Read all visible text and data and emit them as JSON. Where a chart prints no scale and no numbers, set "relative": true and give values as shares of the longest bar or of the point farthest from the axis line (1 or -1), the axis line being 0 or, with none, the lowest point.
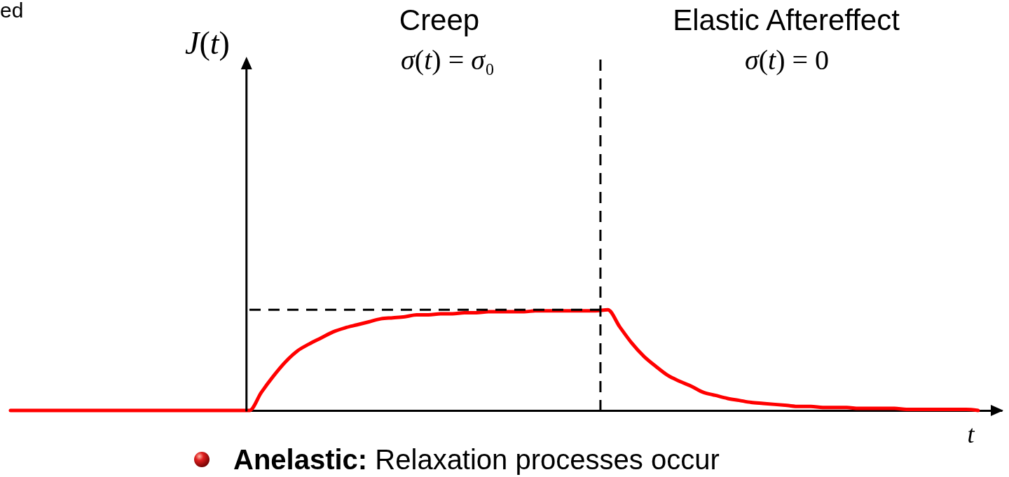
{
  "chart_data": {
    "type": "line",
    "relative": true,
    "xlabel": "t",
    "categories": [
      null,
      null,
      null,
      null,
      null,
      null,
      null,
      null,
      null,
      null,
      null,
      null,
      null,
      null,
      null,
      null,
      null,
      null,
      null,
      null,
      null,
      null,
      null,
      null,
      null,
      null,
      null,
      null,
      null,
      null,
      null,
      null,
      null,
      null,
      null,
      null,
      null,
      null,
      null,
      null,
      null,
      null,
      null,
      null,
      null,
      null,
      null,
      null,
      null,
      null,
      null,
      null,
      null,
      null,
      null,
      null,
      null,
      null,
      null,
      null,
      null,
      null,
      null,
      null,
      null,
      null,
      null,
      null,
      null,
      null,
      null,
      null,
      null,
      null,
      null,
      null,
      null,
      null,
      null,
      null,
      null,
      null
    ],
    "series": [
      {
        "color": "#ff0000",
        "values": [
          0,
          0,
          0,
          0,
          0,
          0,
          0,
          0,
          0,
          0,
          0,
          0,
          0,
          0,
          0,
          0,
          0,
          0,
          0,
          0,
          0,
          0.18,
          0.34,
          0.48,
          0.59,
          0.66,
          0.72,
          0.78,
          0.82,
          0.85,
          0.88,
          0.91,
          0.92,
          0.93,
          0.95,
          0.95,
          0.96,
          0.96,
          0.97,
          0.97,
          0.98,
          0.98,
          0.98,
          0.98,
          0.99,
          0.99,
          0.99,
          0.99,
          0.99,
          0.99,
          1,
          0.83,
          0.67,
          0.54,
          0.44,
          0.35,
          0.29,
          0.24,
          0.18,
          0.15,
          0.12,
          0.1,
          0.08,
          0.07,
          0.06,
          0.05,
          0.04,
          0.04,
          0.03,
          0.03,
          0.03,
          0.02,
          0.02,
          0.02,
          0.02,
          0.01,
          0.01,
          0.01,
          0.01,
          0.01,
          0.01,
          0
        ]
      },
      {
        "color": "#000000",
        "line_style": "dashed",
        "values": [
          null,
          null,
          null,
          null,
          null,
          null,
          null,
          null,
          null,
          null,
          null,
          null,
          null,
          null,
          null,
          null,
          null,
          null,
          null,
          null,
          1,
          1,
          1,
          1,
          1,
          1,
          1,
          1,
          1,
          1,
          1,
          1,
          1,
          1,
          1,
          1,
          1,
          1,
          1,
          1,
          1,
          1,
          1,
          1,
          1,
          1,
          1,
          1,
          1,
          1,
          1,
          null,
          null,
          null,
          null,
          null,
          null,
          null,
          null,
          null,
          null,
          null,
          null,
          null,
          null,
          null,
          null,
          null,
          null,
          null,
          null,
          null,
          null,
          null,
          null,
          null,
          null,
          null,
          null,
          null,
          null,
          null
        ]
      }
    ],
    "annotations": [
      "ed",
      "J(t)",
      "Creep",
      "σ(t) = σ₀",
      "Elastic Aftereffect",
      "σ(t) = 0",
      "Anelastic:",
      "Relaxation processes occur"
    ]
  }
}
